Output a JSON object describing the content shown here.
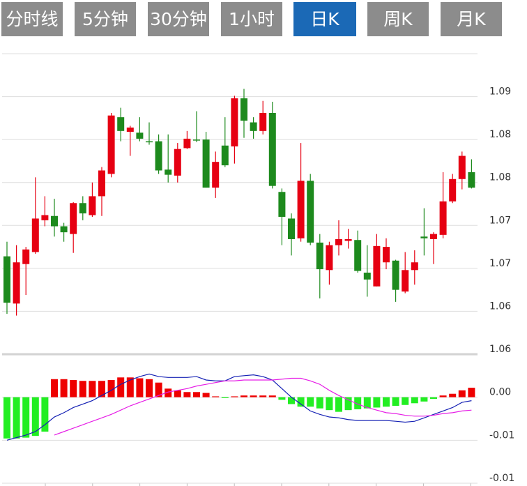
{
  "tabs": {
    "items": [
      "分时线",
      "5分钟",
      "30分钟",
      "1小时",
      "日K",
      "周K",
      "月K"
    ],
    "active": 4
  },
  "chart_data": [
    {
      "type": "candlestick",
      "open": [
        1.0689,
        1.0634,
        1.068,
        1.0694,
        1.0731,
        1.0736,
        1.0724,
        1.0715,
        1.0751,
        1.0737,
        1.0759,
        1.0785,
        1.0851,
        1.0834,
        1.0833,
        1.0823,
        1.0823,
        1.079,
        1.0783,
        1.0815,
        1.0825,
        1.0825,
        1.0769,
        1.0818,
        1.0817,
        1.0873,
        1.0845,
        1.0835,
        1.0856,
        1.0764,
        1.0733,
        1.071,
        1.0777,
        1.0705,
        1.0673,
        1.0702,
        1.0707,
        1.0708,
        1.067,
        1.0654,
        1.0682,
        1.0684,
        1.0648,
        1.0673,
        1.0712,
        1.0709,
        1.0714,
        1.0753,
        1.0779,
        1.0787
      ],
      "high": [
        1.0706,
        1.0702,
        1.07,
        1.0781,
        1.0759,
        1.0756,
        1.0728,
        1.0752,
        1.0759,
        1.0775,
        1.0793,
        1.0856,
        1.0862,
        1.0841,
        1.0851,
        1.0845,
        1.0831,
        1.0831,
        1.0821,
        1.0835,
        1.0858,
        1.0834,
        1.0811,
        1.0851,
        1.0876,
        1.0884,
        1.0851,
        1.087,
        1.0869,
        1.0768,
        1.0739,
        1.0821,
        1.0785,
        1.0715,
        1.0706,
        1.0731,
        1.0721,
        1.0719,
        1.0702,
        1.0715,
        1.071,
        1.0685,
        1.0694,
        1.0696,
        1.0745,
        1.0717,
        1.0787,
        1.0785,
        1.0811,
        1.0802
      ],
      "low": [
        1.0622,
        1.062,
        1.0644,
        1.0692,
        1.0724,
        1.0712,
        1.0706,
        1.0693,
        1.0731,
        1.0735,
        1.0736,
        1.0781,
        1.0823,
        1.0806,
        1.0823,
        1.0819,
        1.0785,
        1.0775,
        1.0775,
        1.0814,
        1.0822,
        1.0769,
        1.0757,
        1.0793,
        1.0797,
        1.0827,
        1.0826,
        1.0831,
        1.0768,
        1.0702,
        1.069,
        1.0706,
        1.0702,
        1.064,
        1.0656,
        1.069,
        1.0698,
        1.067,
        1.0642,
        1.0654,
        1.0674,
        1.0636,
        1.0646,
        1.0656,
        1.069,
        1.068,
        1.071,
        1.0751,
        1.0767,
        1.0768
      ],
      "close": [
        1.0635,
        1.0682,
        1.0697,
        1.0733,
        1.0737,
        1.0724,
        1.0717,
        1.0751,
        1.0739,
        1.0759,
        1.0789,
        1.0853,
        1.0835,
        1.0839,
        1.0826,
        1.0822,
        1.0789,
        1.0784,
        1.0814,
        1.0826,
        1.0824,
        1.0769,
        1.0799,
        1.0795,
        1.0873,
        1.0847,
        1.0835,
        1.0856,
        1.0771,
        1.0735,
        1.0709,
        1.0777,
        1.0705,
        1.0674,
        1.0702,
        1.0709,
        1.0709,
        1.0672,
        1.0662,
        1.0701,
        1.07,
        1.065,
        1.0673,
        1.0682,
        1.071,
        1.0715,
        1.0753,
        1.0779,
        1.0806,
        1.0769
      ],
      "up_color": "#e60012",
      "down_color": "#1d8a1d",
      "ylim": [
        1.0575,
        1.0925
      ],
      "yticks": [
        {
          "value": 1.0875,
          "label": "1.09"
        },
        {
          "value": 1.0825,
          "label": "1.08"
        },
        {
          "value": 1.0775,
          "label": "1.08"
        },
        {
          "value": 1.0725,
          "label": "1.07"
        },
        {
          "value": 1.0675,
          "label": "1.07"
        },
        {
          "value": 1.0625,
          "label": "1.06"
        },
        {
          "value": 1.0575,
          "label": "1.06"
        }
      ],
      "grid": true
    },
    {
      "type": "macd",
      "histogram": [
        -0.0048,
        -0.0048,
        -0.0047,
        -0.0045,
        -0.004,
        0.0021,
        0.0021,
        0.002,
        0.0019,
        0.0019,
        0.0019,
        0.002,
        0.0023,
        0.0023,
        0.0022,
        0.0021,
        0.0017,
        0.001,
        0.0008,
        0.0006,
        0.0006,
        0.0005,
        0.0001,
        -0.0001,
        0.0001,
        0.0002,
        0.0002,
        0.0002,
        0.0002,
        -0.0003,
        -0.0008,
        -0.0011,
        -0.0011,
        -0.0013,
        -0.0015,
        -0.0017,
        -0.0015,
        -0.0014,
        -0.0013,
        -0.0012,
        -0.0011,
        -0.001,
        -0.0009,
        -0.0007,
        -0.0005,
        -0.0002,
        0.0002,
        0.0004,
        0.0008,
        0.0011
      ],
      "dif": [
        -0.005,
        -0.0047,
        -0.0044,
        -0.004,
        -0.0032,
        -0.0023,
        -0.0018,
        -0.0012,
        -0.0008,
        -0.0004,
        0.0002,
        0.0008,
        0.0015,
        0.002,
        0.0024,
        0.0027,
        0.0024,
        0.0023,
        0.0023,
        0.0023,
        0.0024,
        0.002,
        0.0019,
        0.0019,
        0.0024,
        0.0025,
        0.0026,
        0.0024,
        0.002,
        0.001,
        0,
        -0.0008,
        -0.0016,
        -0.002,
        -0.0023,
        -0.0024,
        -0.0026,
        -0.0027,
        -0.0027,
        -0.0027,
        -0.0027,
        -0.0028,
        -0.0029,
        -0.0028,
        -0.0024,
        -0.002,
        -0.0016,
        -0.0012,
        -0.0006,
        -0.0004
      ],
      "dea": [
        null,
        null,
        null,
        null,
        null,
        -0.0044,
        -0.004,
        -0.0036,
        -0.0032,
        -0.0028,
        -0.0024,
        -0.002,
        -0.0015,
        -0.001,
        -0.0006,
        -0.0002,
        0.0002,
        0.0006,
        0.0008,
        0.001,
        0.0013,
        0.0015,
        0.0017,
        0.0019,
        0.0019,
        0.002,
        0.002,
        0.002,
        0.002,
        0.0021,
        0.0022,
        0.0022,
        0.0019,
        0.0015,
        0.0008,
        0.0002,
        -0.0003,
        -0.0008,
        -0.0012,
        -0.0015,
        -0.0018,
        -0.0019,
        -0.0021,
        -0.0022,
        -0.0022,
        -0.0021,
        -0.0019,
        -0.0018,
        -0.0016,
        -0.0015
      ],
      "up_color": "#ee0000",
      "down_color": "#22ee22",
      "dif_color": "#1420b4",
      "dea_color": "#e61ee6",
      "ylim": [
        -0.01,
        0.005
      ],
      "yticks": [
        {
          "value": 0,
          "label": "0.00"
        },
        {
          "value": -0.005,
          "label": "-0.01"
        },
        {
          "value": -0.01,
          "label": "-0.01"
        }
      ],
      "grid": true
    }
  ]
}
